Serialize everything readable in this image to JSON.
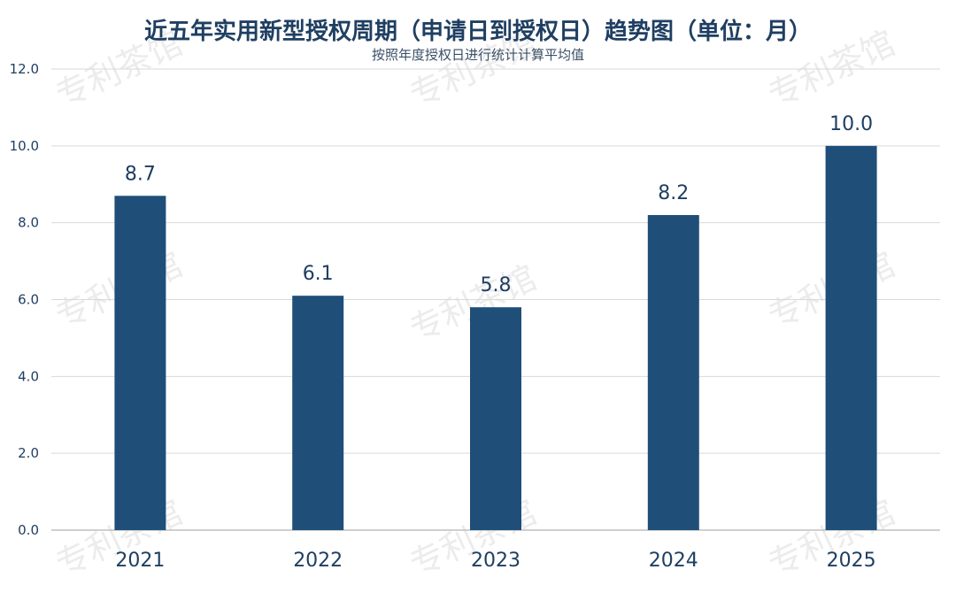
{
  "chart_data": {
    "type": "bar",
    "title": "近五年实用新型授权周期（申请日到授权日）趋势图（单位：月）",
    "subtitle": "按照年度授权日进行统计计算平均值",
    "categories": [
      "2021",
      "2022",
      "2023",
      "2024",
      "2025"
    ],
    "values": [
      8.7,
      6.1,
      5.8,
      8.2,
      10.0
    ],
    "data_labels": [
      "8.7",
      "6.1",
      "5.8",
      "8.2",
      "10.0"
    ],
    "yticks": [
      "0.0",
      "2.0",
      "4.0",
      "6.0",
      "8.0",
      "10.0",
      "12.0"
    ],
    "ylim": [
      0,
      12
    ],
    "grid": true,
    "legend": "none",
    "xlabel": "",
    "ylabel": "",
    "bar_color": "#1f4e79",
    "watermark": "专利茶馆"
  }
}
